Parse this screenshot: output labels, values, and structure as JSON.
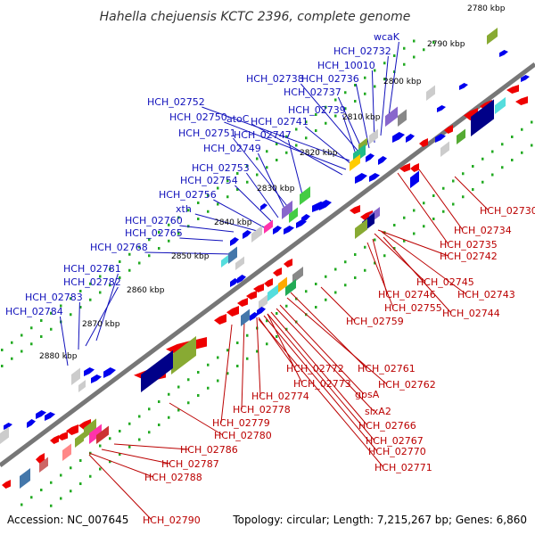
{
  "title": "Hahella chejuensis KCTC 2396, complete genome",
  "footer": {
    "accession": "Accession: NC_007645",
    "summary": "Topology: circular; Length: 7,215,267 bp; Genes: 6,860"
  },
  "colors": {
    "backbone": "#777777",
    "forward_label": "#1111bb",
    "reverse_label": "#bb0000",
    "forward_gene": "#0000ee",
    "reverse_gene": "#ee0000",
    "tick": "#22aa22"
  },
  "kbp_labels": [
    "2780 kbp",
    "2790 kbp",
    "2800 kbp",
    "2810 kbp",
    "2820 kbp",
    "2830 kbp",
    "2840 kbp",
    "2850 kbp",
    "2860 kbp",
    "2870 kbp",
    "2880 kbp"
  ],
  "forward_labels": [
    "wcaK",
    "HCH_02732",
    "HCH_10010",
    "HCH_02736",
    "HCH_02738",
    "HCH_02737",
    "HCH_02739",
    "HCH_02752",
    "HCH_02741",
    "HCH_02750",
    "atoC",
    "HCH_02751",
    "HCH_02747",
    "HCH_02749",
    "HCH_02753",
    "HCH_02754",
    "HCH_02756",
    "xth",
    "HCH_02760",
    "HCH_02765",
    "HCH_02768",
    "HCH_02781",
    "HCH_02782",
    "HCH_02783",
    "HCH_02784"
  ],
  "reverse_labels": [
    "HCH_02730",
    "HCH_02734",
    "HCH_02735",
    "HCH_02742",
    "HCH_02745",
    "HCH_02743",
    "HCH_02746",
    "HCH_02755",
    "HCH_02744",
    "HCH_02759",
    "HCH_02761",
    "HCH_02772",
    "HCH_02762",
    "HCH_02773",
    "gpsA",
    "HCH_02774",
    "HCH_02778",
    "sixA2",
    "HCH_02779",
    "HCH_02766",
    "HCH_02780",
    "HCH_02767",
    "HCH_02770",
    "HCH_02786",
    "HCH_02771",
    "HCH_02787",
    "HCH_02788",
    "HCH_02790"
  ]
}
